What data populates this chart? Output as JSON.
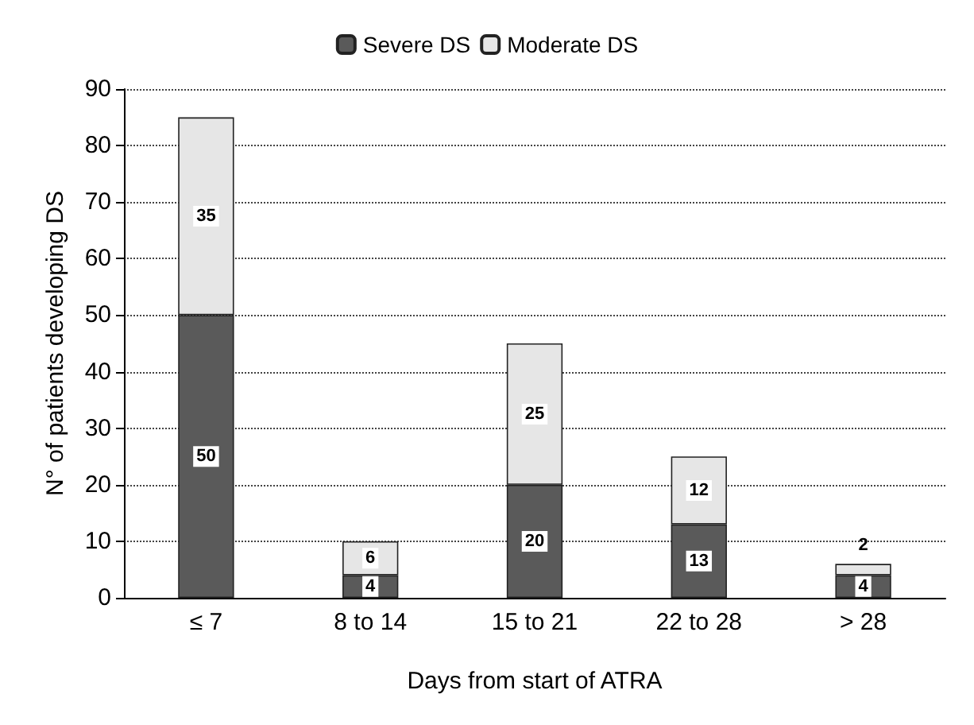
{
  "chart_data": {
    "type": "bar",
    "stacked": true,
    "xlabel": "Days from start of ATRA",
    "ylabel": "N° of patients developing DS",
    "categories": [
      "≤ 7",
      "8 to 14",
      "15 to 21",
      "22 to 28",
      "> 28"
    ],
    "series": [
      {
        "name": "Severe DS",
        "color": "#5a5a5a",
        "values": [
          50,
          4,
          20,
          13,
          4
        ]
      },
      {
        "name": "Moderate DS",
        "color": "#e6e6e6",
        "values": [
          35,
          6,
          25,
          12,
          2
        ]
      }
    ],
    "ylim": [
      0,
      90
    ],
    "yticks": [
      0,
      10,
      20,
      30,
      40,
      50,
      60,
      70,
      80,
      90
    ],
    "grid": "y",
    "legend": "top",
    "data_labels": true
  }
}
